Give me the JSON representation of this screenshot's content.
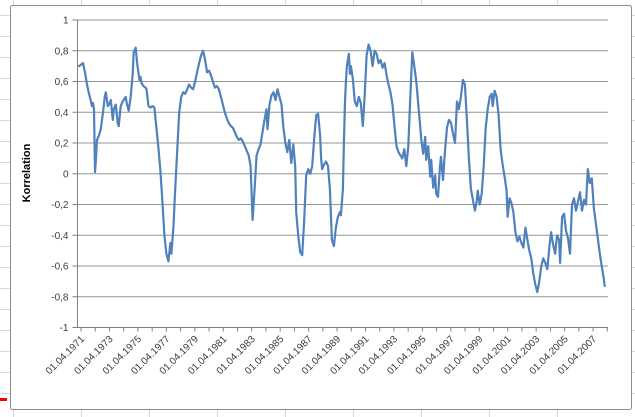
{
  "chart_data": {
    "type": "line",
    "title": "",
    "xlabel": "",
    "ylabel": "Korrelation",
    "legend": "none",
    "grid": "horizontal gridlines every 0.2",
    "ylim": [
      -1,
      1
    ],
    "xlim": [
      1971.0,
      2008.3
    ],
    "y_ticks": [
      1,
      0.8,
      0.6,
      0.4,
      0.2,
      0,
      -0.2,
      -0.4,
      -0.6,
      -0.8,
      -1
    ],
    "y_tick_labels": [
      "1",
      "0,8",
      "0,6",
      "0,4",
      "0,2",
      "0",
      "-0,2",
      "-0,4",
      "-0,6",
      "-0,8",
      "-1"
    ],
    "x_major_tick_years": [
      1971.25,
      1973.25,
      1975.25,
      1977.25,
      1979.25,
      1981.25,
      1983.25,
      1985.25,
      1987.25,
      1989.25,
      1991.25,
      1993.25,
      1995.25,
      1997.25,
      1999.25,
      2001.25,
      2003.25,
      2005.25,
      2007.25
    ],
    "x_tick_labels": [
      "01.04.1971",
      "01.04.1973",
      "01.04.1975",
      "01.04.1977",
      "01.04.1979",
      "01.04.1981",
      "01.04.1983",
      "01.04.1985",
      "01.04.1987",
      "01.04.1989",
      "01.04.1991",
      "01.04.1993",
      "01.04.1995",
      "01.04.1997",
      "01.04.1999",
      "01.04.2001",
      "01.04.2003",
      "01.04.2005",
      "01.04.2007"
    ],
    "x_minor_tick_step_years": 1,
    "x_minor_tick_start": 1971.25,
    "x_minor_tick_end": 2008.25,
    "series": [
      {
        "name": "Korrelation",
        "color": "#4F81BD",
        "points": [
          [
            1971.11,
            0.7
          ],
          [
            1971.25,
            0.71
          ],
          [
            1971.39,
            0.72
          ],
          [
            1971.53,
            0.66
          ],
          [
            1971.67,
            0.58
          ],
          [
            1971.81,
            0.52
          ],
          [
            1971.95,
            0.47
          ],
          [
            1972.02,
            0.44
          ],
          [
            1972.09,
            0.46
          ],
          [
            1972.16,
            0.42
          ],
          [
            1972.23,
            0.01
          ],
          [
            1972.3,
            0.1
          ],
          [
            1972.37,
            0.22
          ],
          [
            1972.51,
            0.25
          ],
          [
            1972.64,
            0.29
          ],
          [
            1972.78,
            0.39
          ],
          [
            1972.92,
            0.5
          ],
          [
            1972.99,
            0.53
          ],
          [
            1973.13,
            0.44
          ],
          [
            1973.27,
            0.46
          ],
          [
            1973.34,
            0.48
          ],
          [
            1973.48,
            0.35
          ],
          [
            1973.55,
            0.42
          ],
          [
            1973.69,
            0.45
          ],
          [
            1973.83,
            0.33
          ],
          [
            1973.9,
            0.31
          ],
          [
            1974.04,
            0.44
          ],
          [
            1974.18,
            0.47
          ],
          [
            1974.32,
            0.49
          ],
          [
            1974.39,
            0.5
          ],
          [
            1974.46,
            0.46
          ],
          [
            1974.6,
            0.41
          ],
          [
            1974.74,
            0.5
          ],
          [
            1974.88,
            0.65
          ],
          [
            1974.95,
            0.79
          ],
          [
            1975.09,
            0.82
          ],
          [
            1975.16,
            0.75
          ],
          [
            1975.22,
            0.7
          ],
          [
            1975.36,
            0.61
          ],
          [
            1975.43,
            0.63
          ],
          [
            1975.5,
            0.59
          ],
          [
            1975.64,
            0.57
          ],
          [
            1975.78,
            0.56
          ],
          [
            1975.85,
            0.55
          ],
          [
            1975.99,
            0.44
          ],
          [
            1976.13,
            0.43
          ],
          [
            1976.27,
            0.44
          ],
          [
            1976.41,
            0.43
          ],
          [
            1976.55,
            0.3
          ],
          [
            1976.69,
            0.17
          ],
          [
            1976.83,
            0.02
          ],
          [
            1976.97,
            -0.18
          ],
          [
            1977.11,
            -0.4
          ],
          [
            1977.25,
            -0.52
          ],
          [
            1977.39,
            -0.57
          ],
          [
            1977.53,
            -0.45
          ],
          [
            1977.6,
            -0.52
          ],
          [
            1977.74,
            -0.35
          ],
          [
            1977.87,
            -0.1
          ],
          [
            1978.01,
            0.15
          ],
          [
            1978.15,
            0.4
          ],
          [
            1978.29,
            0.5
          ],
          [
            1978.43,
            0.53
          ],
          [
            1978.57,
            0.52
          ],
          [
            1978.71,
            0.55
          ],
          [
            1978.85,
            0.58
          ],
          [
            1978.99,
            0.56
          ],
          [
            1979.13,
            0.55
          ],
          [
            1979.27,
            0.6
          ],
          [
            1979.41,
            0.66
          ],
          [
            1979.55,
            0.72
          ],
          [
            1979.69,
            0.77
          ],
          [
            1979.83,
            0.8
          ],
          [
            1979.97,
            0.74
          ],
          [
            1980.11,
            0.66
          ],
          [
            1980.25,
            0.67
          ],
          [
            1980.39,
            0.64
          ],
          [
            1980.52,
            0.6
          ],
          [
            1980.66,
            0.56
          ],
          [
            1980.8,
            0.57
          ],
          [
            1980.94,
            0.55
          ],
          [
            1981.08,
            0.5
          ],
          [
            1981.22,
            0.45
          ],
          [
            1981.36,
            0.4
          ],
          [
            1981.5,
            0.36
          ],
          [
            1981.64,
            0.33
          ],
          [
            1981.78,
            0.31
          ],
          [
            1981.92,
            0.3
          ],
          [
            1982.06,
            0.27
          ],
          [
            1982.2,
            0.24
          ],
          [
            1982.34,
            0.22
          ],
          [
            1982.48,
            0.23
          ],
          [
            1982.62,
            0.21
          ],
          [
            1982.76,
            0.18
          ],
          [
            1982.9,
            0.15
          ],
          [
            1983.04,
            0.12
          ],
          [
            1983.17,
            0.05
          ],
          [
            1983.31,
            -0.3
          ],
          [
            1983.45,
            -0.1
          ],
          [
            1983.59,
            0.12
          ],
          [
            1983.73,
            0.16
          ],
          [
            1983.87,
            0.19
          ],
          [
            1984.01,
            0.27
          ],
          [
            1984.15,
            0.35
          ],
          [
            1984.29,
            0.42
          ],
          [
            1984.36,
            0.29
          ],
          [
            1984.5,
            0.45
          ],
          [
            1984.64,
            0.51
          ],
          [
            1984.78,
            0.53
          ],
          [
            1984.92,
            0.48
          ],
          [
            1985.06,
            0.55
          ],
          [
            1985.2,
            0.5
          ],
          [
            1985.34,
            0.45
          ],
          [
            1985.48,
            0.3
          ],
          [
            1985.62,
            0.2
          ],
          [
            1985.75,
            0.14
          ],
          [
            1985.89,
            0.22
          ],
          [
            1986.03,
            0.07
          ],
          [
            1986.17,
            0.19
          ],
          [
            1986.31,
            0.05
          ],
          [
            1986.38,
            -0.25
          ],
          [
            1986.52,
            -0.4
          ],
          [
            1986.66,
            -0.51
          ],
          [
            1986.8,
            -0.53
          ],
          [
            1986.94,
            -0.3
          ],
          [
            1987.08,
            -0.01
          ],
          [
            1987.22,
            0.03
          ],
          [
            1987.36,
            0.0
          ],
          [
            1987.5,
            0.05
          ],
          [
            1987.64,
            0.23
          ],
          [
            1987.78,
            0.38
          ],
          [
            1987.92,
            0.39
          ],
          [
            1988.06,
            0.25
          ],
          [
            1988.13,
            0.1
          ],
          [
            1988.2,
            0.03
          ],
          [
            1988.34,
            0.06
          ],
          [
            1988.47,
            0.08
          ],
          [
            1988.61,
            0.05
          ],
          [
            1988.75,
            -0.1
          ],
          [
            1988.89,
            -0.43
          ],
          [
            1989.03,
            -0.47
          ],
          [
            1989.17,
            -0.35
          ],
          [
            1989.31,
            -0.28
          ],
          [
            1989.45,
            -0.25
          ],
          [
            1989.52,
            -0.27
          ],
          [
            1989.66,
            -0.1
          ],
          [
            1989.73,
            0.2
          ],
          [
            1989.8,
            0.45
          ],
          [
            1989.87,
            0.6
          ],
          [
            1989.94,
            0.7
          ],
          [
            1990.08,
            0.78
          ],
          [
            1990.15,
            0.65
          ],
          [
            1990.22,
            0.7
          ],
          [
            1990.36,
            0.62
          ],
          [
            1990.5,
            0.47
          ],
          [
            1990.64,
            0.44
          ],
          [
            1990.78,
            0.5
          ],
          [
            1990.92,
            0.46
          ],
          [
            1991.06,
            0.31
          ],
          [
            1991.19,
            0.51
          ],
          [
            1991.33,
            0.77
          ],
          [
            1991.47,
            0.84
          ],
          [
            1991.61,
            0.8
          ],
          [
            1991.75,
            0.7
          ],
          [
            1991.89,
            0.8
          ],
          [
            1992.03,
            0.78
          ],
          [
            1992.17,
            0.72
          ],
          [
            1992.31,
            0.74
          ],
          [
            1992.45,
            0.69
          ],
          [
            1992.59,
            0.72
          ],
          [
            1992.73,
            0.64
          ],
          [
            1992.87,
            0.58
          ],
          [
            1993.01,
            0.53
          ],
          [
            1993.15,
            0.45
          ],
          [
            1993.29,
            0.31
          ],
          [
            1993.43,
            0.18
          ],
          [
            1993.57,
            0.14
          ],
          [
            1993.7,
            0.12
          ],
          [
            1993.84,
            0.1
          ],
          [
            1993.98,
            0.16
          ],
          [
            1994.12,
            0.05
          ],
          [
            1994.26,
            0.18
          ],
          [
            1994.4,
            0.5
          ],
          [
            1994.54,
            0.79
          ],
          [
            1994.68,
            0.7
          ],
          [
            1994.82,
            0.6
          ],
          [
            1994.96,
            0.45
          ],
          [
            1995.1,
            0.3
          ],
          [
            1995.17,
            0.22
          ],
          [
            1995.31,
            0.13
          ],
          [
            1995.45,
            0.24
          ],
          [
            1995.52,
            0.09
          ],
          [
            1995.66,
            0.18
          ],
          [
            1995.8,
            -0.02
          ],
          [
            1995.87,
            0.09
          ],
          [
            1996.01,
            -0.09
          ],
          [
            1996.15,
            -0.01
          ],
          [
            1996.22,
            -0.13
          ],
          [
            1996.35,
            -0.15
          ],
          [
            1996.49,
            0.05
          ],
          [
            1996.56,
            0.11
          ],
          [
            1996.7,
            -0.04
          ],
          [
            1996.84,
            0.15
          ],
          [
            1996.98,
            0.3
          ],
          [
            1997.12,
            0.35
          ],
          [
            1997.26,
            0.33
          ],
          [
            1997.4,
            0.26
          ],
          [
            1997.54,
            0.2
          ],
          [
            1997.68,
            0.47
          ],
          [
            1997.82,
            0.42
          ],
          [
            1997.96,
            0.5
          ],
          [
            1998.1,
            0.61
          ],
          [
            1998.24,
            0.58
          ],
          [
            1998.38,
            0.35
          ],
          [
            1998.52,
            0.1
          ],
          [
            1998.66,
            -0.1
          ],
          [
            1998.8,
            -0.17
          ],
          [
            1998.94,
            -0.24
          ],
          [
            1999.07,
            -0.18
          ],
          [
            1999.14,
            -0.11
          ],
          [
            1999.28,
            -0.2
          ],
          [
            1999.42,
            -0.13
          ],
          [
            1999.56,
            0.05
          ],
          [
            1999.7,
            0.3
          ],
          [
            1999.84,
            0.42
          ],
          [
            1999.98,
            0.5
          ],
          [
            2000.12,
            0.52
          ],
          [
            2000.19,
            0.44
          ],
          [
            2000.33,
            0.54
          ],
          [
            2000.47,
            0.5
          ],
          [
            2000.61,
            0.38
          ],
          [
            2000.75,
            0.16
          ],
          [
            2000.89,
            0.06
          ],
          [
            2001.03,
            -0.02
          ],
          [
            2001.17,
            -0.11
          ],
          [
            2001.24,
            -0.28
          ],
          [
            2001.38,
            -0.16
          ],
          [
            2001.51,
            -0.19
          ],
          [
            2001.65,
            -0.25
          ],
          [
            2001.79,
            -0.38
          ],
          [
            2001.93,
            -0.44
          ],
          [
            2002.07,
            -0.41
          ],
          [
            2002.21,
            -0.45
          ],
          [
            2002.35,
            -0.48
          ],
          [
            2002.49,
            -0.35
          ],
          [
            2002.63,
            -0.43
          ],
          [
            2002.77,
            -0.5
          ],
          [
            2002.91,
            -0.55
          ],
          [
            2003.05,
            -0.65
          ],
          [
            2003.19,
            -0.72
          ],
          [
            2003.33,
            -0.77
          ],
          [
            2003.47,
            -0.7
          ],
          [
            2003.61,
            -0.6
          ],
          [
            2003.75,
            -0.55
          ],
          [
            2003.89,
            -0.58
          ],
          [
            2004.03,
            -0.62
          ],
          [
            2004.17,
            -0.48
          ],
          [
            2004.3,
            -0.38
          ],
          [
            2004.44,
            -0.46
          ],
          [
            2004.58,
            -0.52
          ],
          [
            2004.72,
            -0.4
          ],
          [
            2004.86,
            -0.43
          ],
          [
            2004.93,
            -0.58
          ],
          [
            2005.07,
            -0.28
          ],
          [
            2005.21,
            -0.26
          ],
          [
            2005.35,
            -0.37
          ],
          [
            2005.49,
            -0.42
          ],
          [
            2005.63,
            -0.52
          ],
          [
            2005.77,
            -0.2
          ],
          [
            2005.91,
            -0.16
          ],
          [
            2006.05,
            -0.24
          ],
          [
            2006.19,
            -0.18
          ],
          [
            2006.33,
            -0.12
          ],
          [
            2006.47,
            -0.24
          ],
          [
            2006.61,
            -0.17
          ],
          [
            2006.75,
            -0.2
          ],
          [
            2006.88,
            0.03
          ],
          [
            2007.02,
            -0.06
          ],
          [
            2007.16,
            -0.03
          ],
          [
            2007.3,
            -0.22
          ],
          [
            2007.44,
            -0.32
          ],
          [
            2007.58,
            -0.42
          ],
          [
            2007.72,
            -0.52
          ],
          [
            2007.86,
            -0.6
          ],
          [
            2008.0,
            -0.68
          ],
          [
            2008.07,
            -0.73
          ]
        ]
      }
    ]
  },
  "colors": {
    "series_line": "#4F81BD",
    "gridline": "#969696",
    "axis_line": "#808080",
    "tick_label_text": "#3c3c3c",
    "axis_title_text": "#000000",
    "chart_frame_border": "#8c8c8c",
    "chart_background": "#ffffff",
    "worksheet_gridline": "#cfd8e8",
    "red_cell_mark": "#ff0000"
  }
}
